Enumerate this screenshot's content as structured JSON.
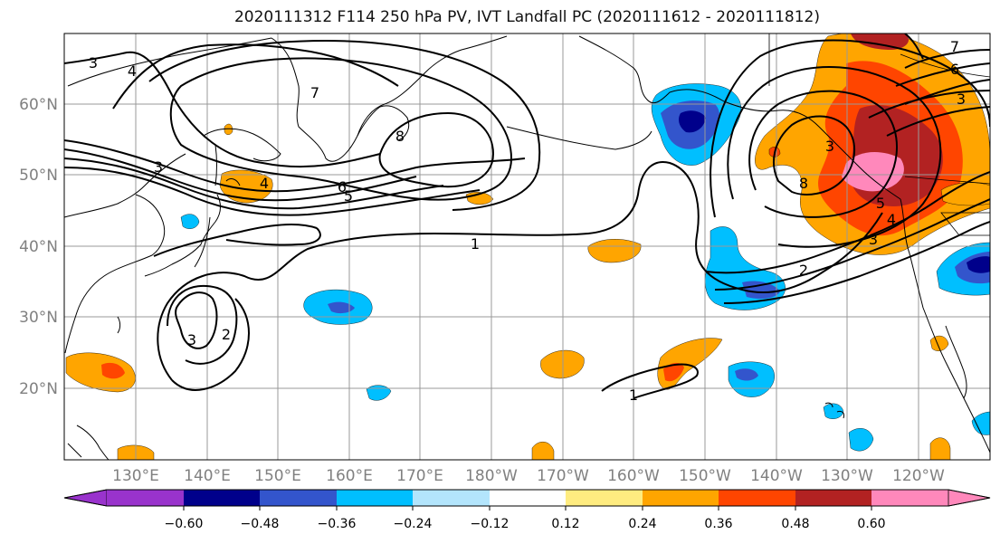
{
  "title": "2020111312 F114 250 hPa PV, IVT Landfall PC (2020111612 - 2020111812)",
  "lat_labels": [
    "60°N",
    "50°N",
    "40°N",
    "30°N",
    "20°N"
  ],
  "lon_labels": [
    "130°E",
    "140°E",
    "150°E",
    "160°E",
    "170°E",
    "180°W",
    "170°W",
    "160°W",
    "150°W",
    "140°W",
    "130°W",
    "120°W"
  ],
  "colorbar": {
    "ticks": [
      "−0.60",
      "−0.48",
      "−0.36",
      "−0.24",
      "−0.12",
      "0.12",
      "0.24",
      "0.36",
      "0.48",
      "0.60"
    ],
    "colors": [
      "#9933cc",
      "#00008b",
      "#3355cc",
      "#00bfff",
      "#b3e5fc",
      "#ffffff",
      "#ffec80",
      "#ffa500",
      "#ff4500",
      "#b22222",
      "#ff88bb"
    ]
  },
  "contour_labels": [
    "3",
    "4",
    "7",
    "8",
    "3",
    "6",
    "5",
    "4",
    "1",
    "3",
    "2",
    "1",
    "8",
    "3",
    "5",
    "4",
    "3",
    "2",
    "6",
    "7",
    "3"
  ],
  "colors": {
    "gridline": "#999999",
    "coastline": "#000000",
    "contour": "#000000",
    "tick_label": "#808080"
  }
}
